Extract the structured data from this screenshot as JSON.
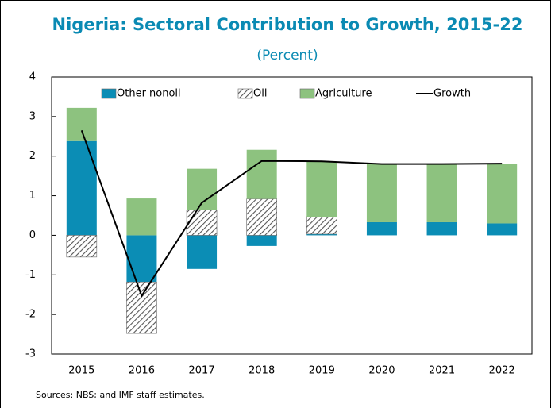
{
  "chart_data": {
    "type": "bar",
    "stacked": true,
    "title": "Nigeria: Sectoral Contribution to Growth, 2015-22",
    "subtitle": "(Percent)",
    "source": "Sources: NBS; and IMF staff estimates.",
    "categories": [
      "2015",
      "2016",
      "2017",
      "2018",
      "2019",
      "2020",
      "2021",
      "2022"
    ],
    "series": [
      {
        "name": "Other nonoil",
        "type": "bar",
        "color": "#0b8db5",
        "values": [
          2.38,
          -1.18,
          -0.85,
          -0.27,
          0.03,
          0.33,
          0.33,
          0.3
        ]
      },
      {
        "name": "Oil",
        "type": "bar",
        "color": "#555555",
        "hatch": true,
        "values": [
          -0.55,
          -1.3,
          0.64,
          0.92,
          0.44,
          0,
          0,
          0
        ]
      },
      {
        "name": "Agriculture",
        "type": "bar",
        "color": "#8dc27f",
        "values": [
          0.84,
          0.93,
          1.04,
          1.24,
          1.39,
          1.47,
          1.47,
          1.51
        ]
      },
      {
        "name": "Growth",
        "type": "line",
        "color": "#000000",
        "values": [
          2.65,
          -1.53,
          0.82,
          1.88,
          1.87,
          1.8,
          1.8,
          1.81
        ]
      }
    ],
    "ylim": [
      -3,
      4
    ],
    "yticks": [
      -3,
      -2,
      -1,
      0,
      1,
      2,
      3,
      4
    ],
    "legend": "top"
  }
}
